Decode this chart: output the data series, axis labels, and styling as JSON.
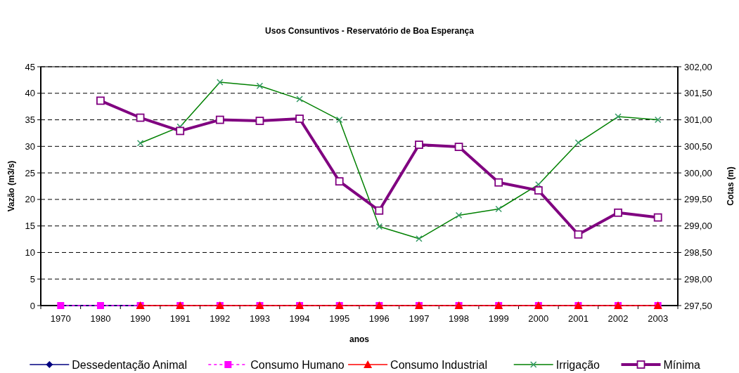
{
  "chart_data": {
    "type": "line",
    "title": "Usos Consuntivos - Reservatório de Boa Esperança",
    "xlabel": "anos",
    "ylabel": "Vazão (m3/s)",
    "y2label": "Cotas (m)",
    "categories": [
      "1970",
      "1980",
      "1990",
      "1991",
      "1992",
      "1993",
      "1994",
      "1995",
      "1996",
      "1997",
      "1998",
      "1999",
      "2000",
      "2001",
      "2002",
      "2003"
    ],
    "ylim": [
      0,
      45
    ],
    "yticks": [
      0,
      5,
      10,
      15,
      20,
      25,
      30,
      35,
      40,
      45
    ],
    "y2lim": [
      297.5,
      302
    ],
    "y2ticks": [
      {
        "value": 297.5,
        "label": "297,50"
      },
      {
        "value": 298,
        "label": "298,00"
      },
      {
        "value": 298.5,
        "label": "298,50"
      },
      {
        "value": 299,
        "label": "299,00"
      },
      {
        "value": 299.5,
        "label": "299,50"
      },
      {
        "value": 300,
        "label": "300,00"
      },
      {
        "value": 300.5,
        "label": "300,50"
      },
      {
        "value": 301,
        "label": "301,00"
      },
      {
        "value": 301.5,
        "label": "301,50"
      },
      {
        "value": 302,
        "label": "302,00"
      }
    ],
    "grid": "y",
    "legend": "bottom",
    "series": [
      {
        "name": "Dessedentação Animal",
        "color": "#000080",
        "marker": "diamond",
        "line_style": "solid",
        "values": [
          0,
          0,
          0,
          null,
          null,
          null,
          null,
          null,
          null,
          null,
          null,
          null,
          null,
          null,
          null,
          null
        ]
      },
      {
        "name": "Consumo Humano",
        "color": "#ff00ff",
        "marker": "square",
        "line_style": "dashed",
        "values": [
          0,
          0,
          0,
          0,
          0,
          0,
          0,
          0,
          0,
          0,
          0,
          0,
          0,
          0,
          0,
          0
        ]
      },
      {
        "name": "Consumo Industrial",
        "color": "#ff0000",
        "marker": "triangle",
        "line_style": "solid",
        "values": [
          null,
          null,
          0,
          0,
          0,
          0,
          0,
          0,
          0,
          0,
          0,
          0,
          0,
          0,
          0,
          0
        ]
      },
      {
        "name": "Irrigação",
        "color": "#008000",
        "marker": "cross",
        "line_style": "solid",
        "values": [
          null,
          null,
          30.6,
          33.7,
          42.1,
          41.4,
          38.9,
          35.0,
          14.9,
          12.6,
          17.0,
          18.2,
          22.8,
          30.7,
          35.6,
          35.0
        ]
      },
      {
        "name": "Mínima",
        "color": "#800080",
        "marker": "square",
        "line_style": "solid",
        "axis": "y2",
        "values": [
          null,
          301.36,
          301.04,
          300.79,
          301.0,
          300.98,
          301.02,
          299.84,
          299.29,
          300.53,
          300.49,
          299.82,
          299.67,
          298.84,
          299.25,
          299.16
        ]
      }
    ]
  }
}
